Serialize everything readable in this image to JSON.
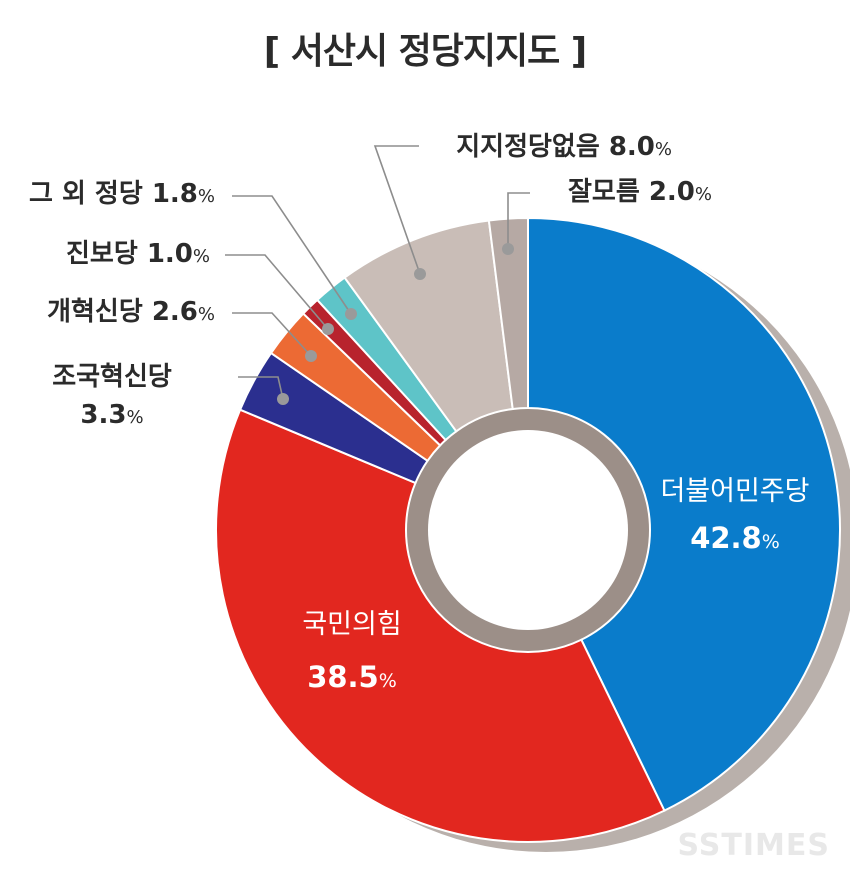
{
  "chart_data": {
    "type": "pie",
    "variant": "donut",
    "title": "[ 서산시 정당지지도 ]",
    "unit": "%",
    "slices": [
      {
        "label": "더불어민주당",
        "value": 42.8,
        "color": "#0a7ccb"
      },
      {
        "label": "국민의힘",
        "value": 38.5,
        "color": "#e2271f"
      },
      {
        "label": "조국혁신당",
        "value": 3.3,
        "color": "#2b2f8f"
      },
      {
        "label": "개혁신당",
        "value": 2.6,
        "color": "#ec6a34"
      },
      {
        "label": "진보당",
        "value": 1.0,
        "color": "#b8232d"
      },
      {
        "label": "그 외 정당",
        "value": 1.8,
        "color": "#5ec4c8"
      },
      {
        "label": "지지정당없음",
        "value": 8.0,
        "color": "#c9bdb7"
      },
      {
        "label": "잘모름",
        "value": 2.0,
        "color": "#b6a9a4"
      }
    ],
    "inner_labels": [
      "더불어민주당",
      "국민의힘"
    ],
    "legend": "none"
  },
  "watermark": "SSTIMES"
}
